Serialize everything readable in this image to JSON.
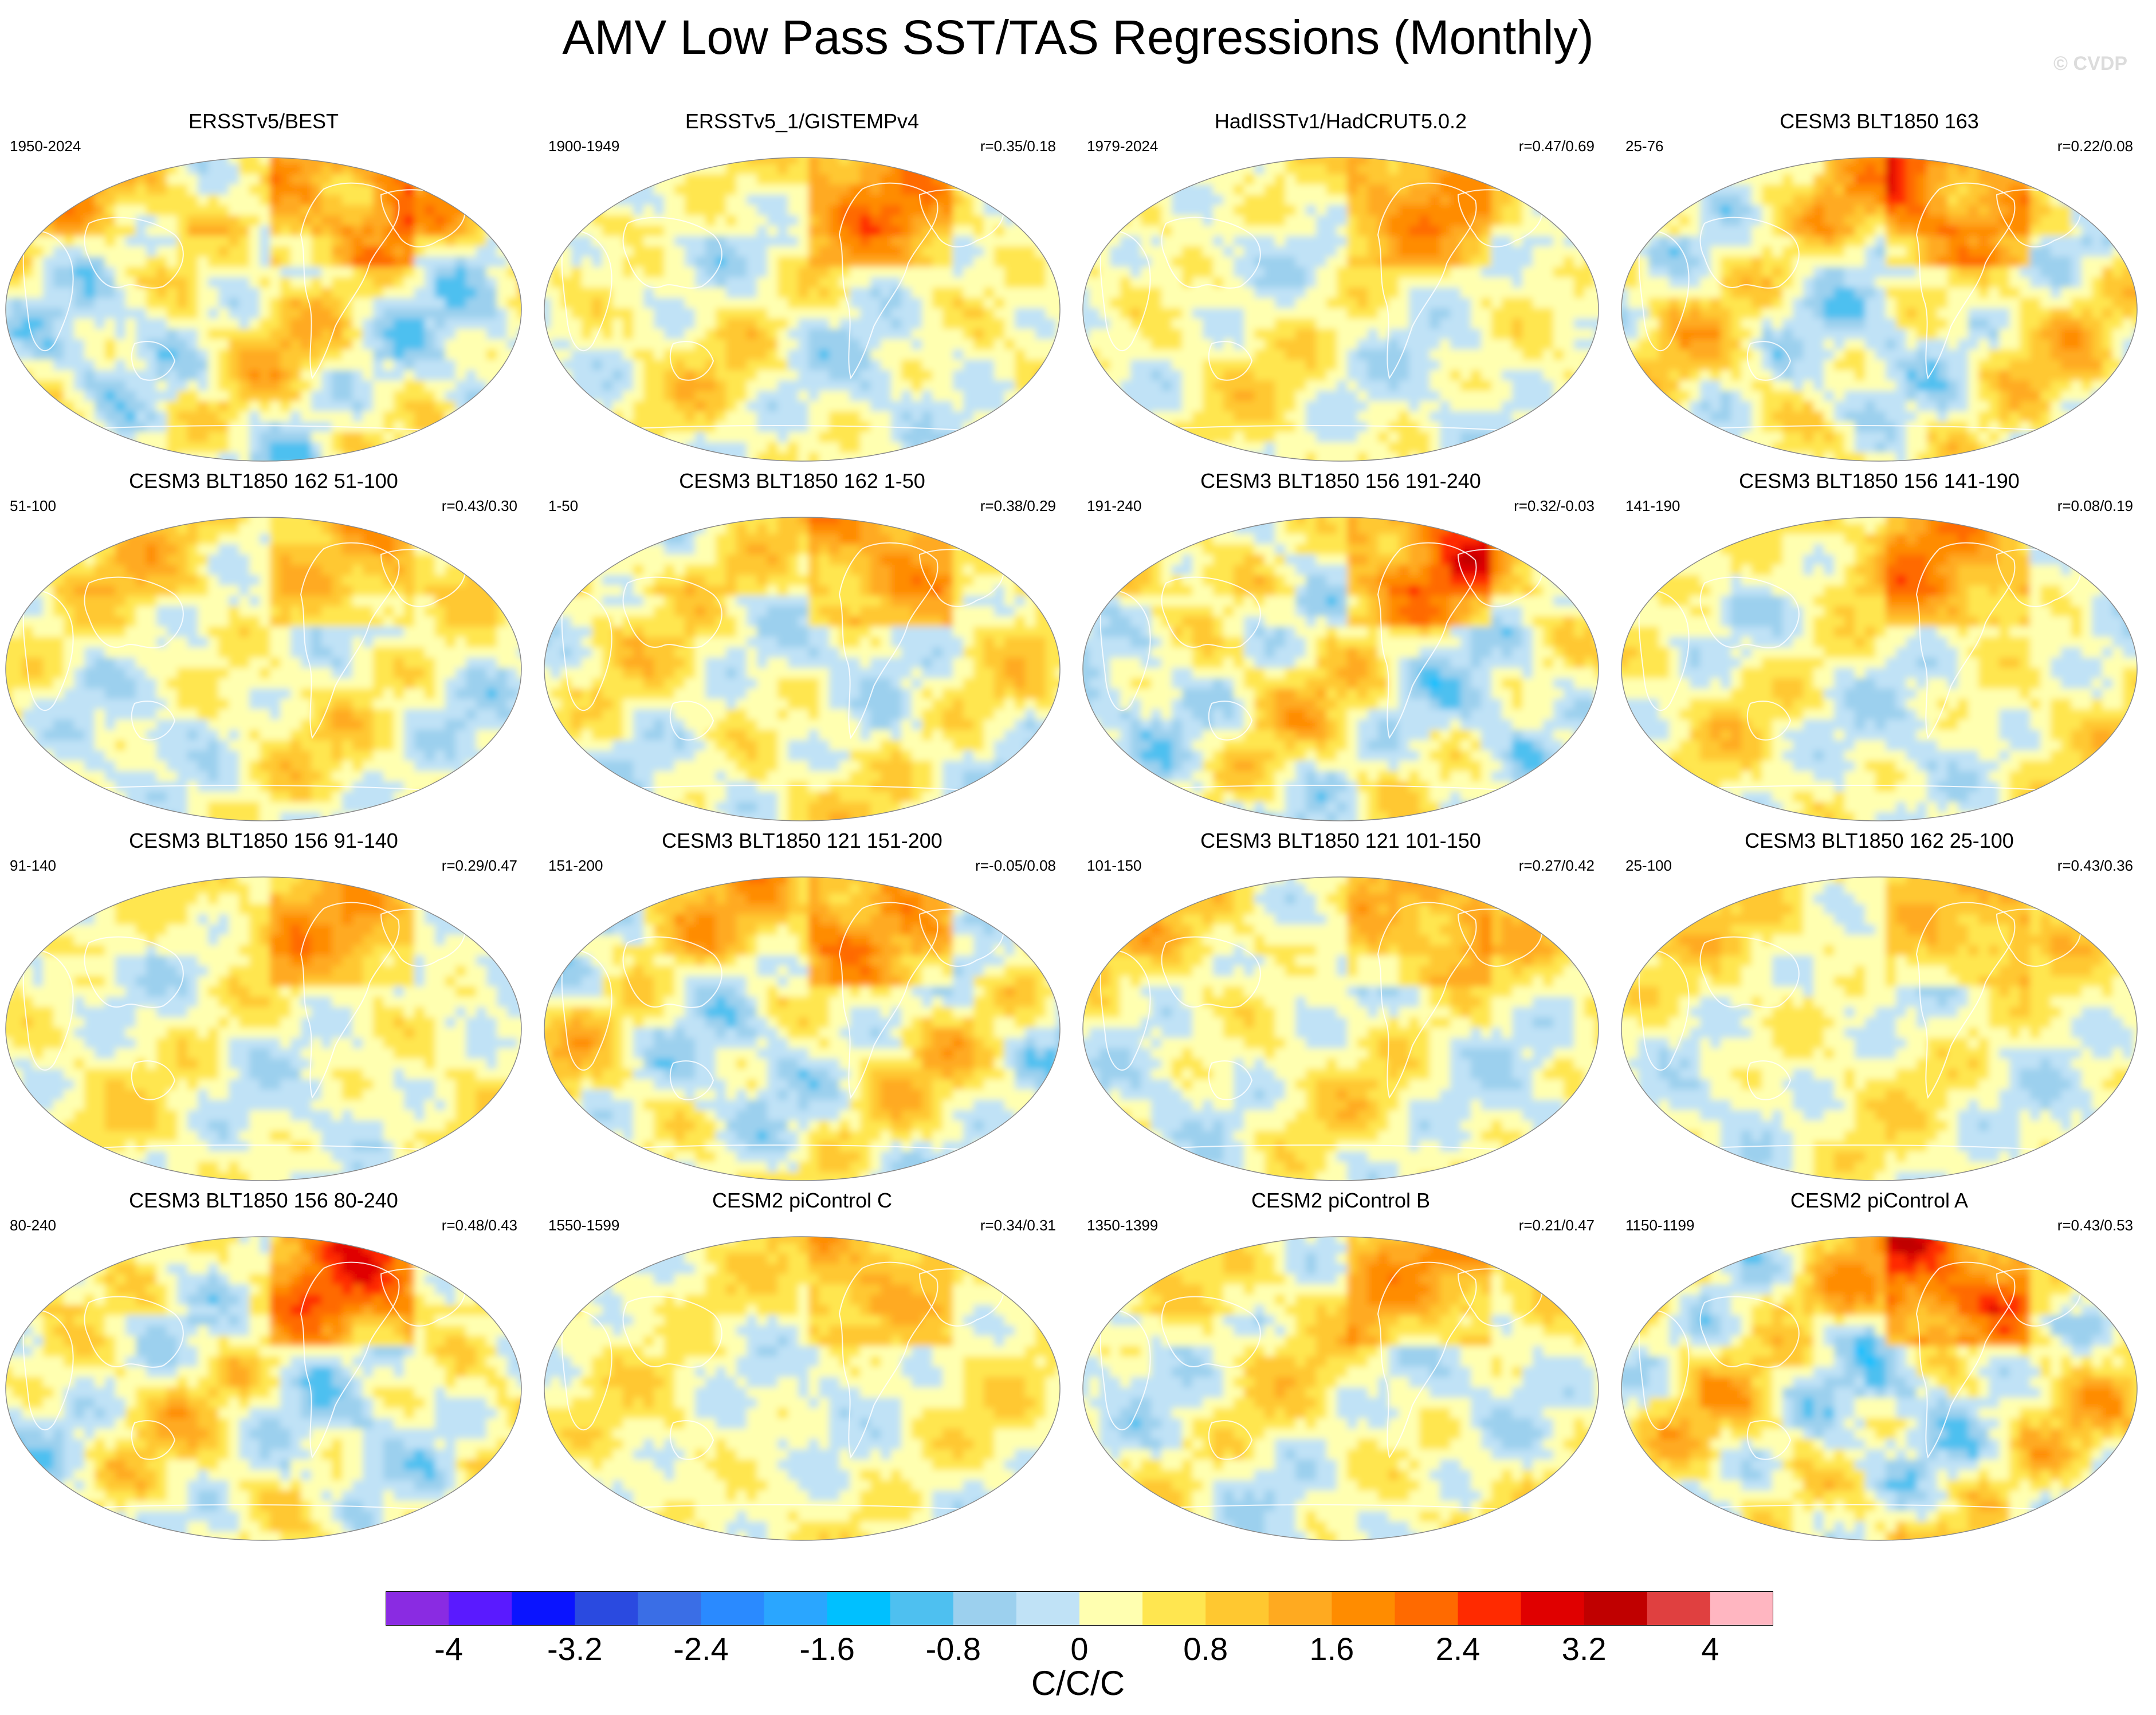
{
  "title": "AMV Low Pass SST/TAS Regressions (Monthly)",
  "watermark": "© CVDP",
  "colorbar": {
    "units": "C/C/C",
    "colors": [
      "#8a2be2",
      "#5a1aff",
      "#0a14ff",
      "#2a4ae0",
      "#3a6ee6",
      "#2a8aff",
      "#2aa6ff",
      "#00c0ff",
      "#4ec0f0",
      "#9cd0ee",
      "#c0e2f6",
      "#ffffb0",
      "#ffe650",
      "#ffc830",
      "#ffaa20",
      "#ff8c00",
      "#ff6a00",
      "#ff2a00",
      "#e00000",
      "#c00000",
      "#e04040",
      "#ffb6c1"
    ],
    "ticks": [
      "-4",
      "-3.2",
      "-2.4",
      "-1.6",
      "-0.8",
      "0",
      "0.8",
      "1.6",
      "2.4",
      "3.2",
      "4"
    ]
  },
  "panels": [
    {
      "title": "ERSSTv5/BEST",
      "years": "1950-2024",
      "corr": "",
      "seed": 11
    },
    {
      "title": "ERSSTv5_1/GISTEMPv4",
      "years": "1900-1949",
      "corr": "r=0.35/0.18",
      "seed": 23
    },
    {
      "title": "HadISSTv1/HadCRUT5.0.2",
      "years": "1979-2024",
      "corr": "r=0.47/0.69",
      "seed": 37
    },
    {
      "title": "CESM3 BLT1850 163",
      "years": "25-76",
      "corr": "r=0.22/0.08",
      "seed": 41
    },
    {
      "title": "CESM3 BLT1850 162 51-100",
      "years": "51-100",
      "corr": "r=0.43/0.30",
      "seed": 53
    },
    {
      "title": "CESM3 BLT1850 162 1-50",
      "years": "1-50",
      "corr": "r=0.38/0.29",
      "seed": 61
    },
    {
      "title": "CESM3 BLT1850 156 191-240",
      "years": "191-240",
      "corr": "r=0.32/-0.03",
      "seed": 71
    },
    {
      "title": "CESM3 BLT1850 156 141-190",
      "years": "141-190",
      "corr": "r=0.08/0.19",
      "seed": 83
    },
    {
      "title": "CESM3 BLT1850 156 91-140",
      "years": "91-140",
      "corr": "r=0.29/0.47",
      "seed": 97
    },
    {
      "title": "CESM3 BLT1850 121 151-200",
      "years": "151-200",
      "corr": "r=-0.05/0.08",
      "seed": 101
    },
    {
      "title": "CESM3 BLT1850 121 101-150",
      "years": "101-150",
      "corr": "r=0.27/0.42",
      "seed": 113
    },
    {
      "title": "CESM3 BLT1850 162 25-100",
      "years": "25-100",
      "corr": "r=0.43/0.36",
      "seed": 127
    },
    {
      "title": "CESM3 BLT1850 156 80-240",
      "years": "80-240",
      "corr": "r=0.48/0.43",
      "seed": 131
    },
    {
      "title": "CESM2 piControl C",
      "years": "1550-1599",
      "corr": "r=0.34/0.31",
      "seed": 149
    },
    {
      "title": "CESM2 piControl B",
      "years": "1350-1399",
      "corr": "r=0.21/0.47",
      "seed": 151
    },
    {
      "title": "CESM2 piControl A",
      "years": "1150-1199",
      "corr": "r=0.43/0.53",
      "seed": 163
    }
  ]
}
